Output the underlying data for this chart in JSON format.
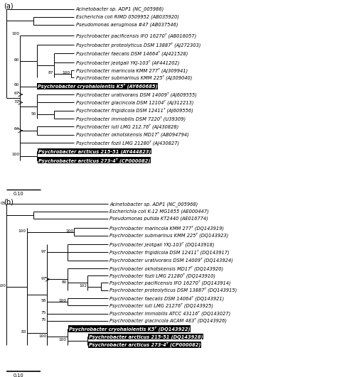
{
  "fig_width": 4.74,
  "fig_height": 5.31,
  "dpi": 100,
  "panel_a": {
    "label": "(a)",
    "taxa_a": [
      "Acinetobacter sp. ADP1 (NC_005986)",
      "Escherichia coli RIMD 0509952 (AB035920)",
      "Pseudomonas aeruginosa #47 (AB037546)",
      "Psychrobacter pacificensis IFO 16270ᵀ (AB016057)",
      "Psychrobacter proteolyticus DSM 13887ᵀ (AJ272303)",
      "Psychrobacter faecalis DSM 14664ᵀ (AJ421528)",
      "Psychrobacter jeotgali YKJ-103ᵀ (AF441202)",
      "Psychrobacter marincola KMM 277ᵀ (AJ309941)",
      "Psychrobacter submarinus KMM 225ᵀ (AJ309040)",
      "Psychrobacter cryohalolentis K5ᵀ (AY660685)",
      "Psychrobacter urativorans DSM 14009ᵀ (AJ609555)",
      "Psychrobacter glacincola DSM 12104ᵀ (AJ312213)",
      "Psychrobacter frigidicola DSM 12411ᵀ (AJ609556)",
      "Psychrobacter immobilis DSM 7220ᵀ (U39309)",
      "Psychrobacter luti LMG 212.76ᵀ (AJ430828)",
      "Psychrobacter okhotskensis MD17ᵀ (AB094794)",
      "Psychrobacter fozii LMG 21280ᵀ (AJ430827)",
      "Psychrobacter arcticus 215-51 (AY444823)",
      "Psychrobacter arcticus 273-4ᵀ (CP000082)"
    ],
    "highlight_a": [
      9,
      17,
      18
    ],
    "scale_bar": "0.10"
  },
  "panel_b": {
    "label": "(b)",
    "taxa_b": [
      "Acinetobacter sp. ADP1 (NC_005968)",
      "Escherichia coli K-12 MG1655 (AE000447)",
      "Pseudomonas putida KT2440 (AE016774)",
      "Psychrobacter marincola KMM 277ᵀ (DQ143919)",
      "Psychrobacter submarinus KMM 225ᵀ (DQ143923)",
      "Psychrobacter jeotgali YKJ-103ᵀ (DQ143918)",
      "Psychrobacter frigidicola DSM 12411ᵀ (DQ143917)",
      "Psychrobacter urativorans DSM 14009ᵀ (DQ143924)",
      "Psychrobacter okhotskensis MD17ᵀ (DQ143920)",
      "Psychrobacter fozii LMG 21280ᵀ (DQ143910)",
      "Psychrobacter pacificensis IFO 16270ᵀ (DQ143914)",
      "Psychrobacter proteolyticus DSM 13887ᵀ (DQ143915)",
      "Psychrobacter faecalis DSM 14064ᵀ (DQ143921)",
      "Psychrobacter luti LMG 21276ᵀ (DQ143925)",
      "Psychrobacter immobilis ATCC 43116ᵀ (DQ143027)",
      "Psychrobacter glacincola ACAM 483ᵀ (DQ143926)",
      "Psychrobacter cryohalolentis K5ᵀ (DQ143922)",
      "Psychrobacter arcticus 215-51 (DQ143928)",
      "Psychrobacter arcticus 273-4ᵀ (CP000082)"
    ],
    "highlight_b": [
      16,
      17,
      18
    ],
    "scale_bar": "0.10"
  }
}
